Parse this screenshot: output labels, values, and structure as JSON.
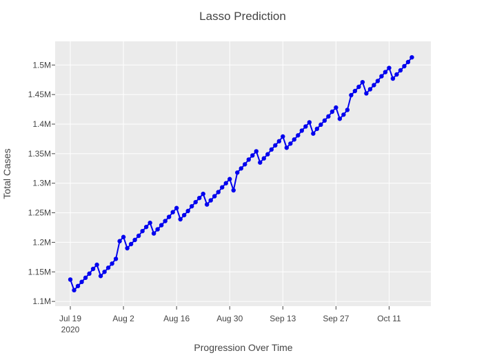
{
  "chart_data": {
    "type": "line",
    "title": "Lasso Prediction",
    "xlabel": "Progression Over Time",
    "ylabel": "Total Cases",
    "x_ticks": [
      {
        "date": "2020-07-19",
        "label": "Jul 19",
        "sublabel": "2020"
      },
      {
        "date": "2020-08-02",
        "label": "Aug 2",
        "sublabel": ""
      },
      {
        "date": "2020-08-16",
        "label": "Aug 16",
        "sublabel": ""
      },
      {
        "date": "2020-08-30",
        "label": "Aug 30",
        "sublabel": ""
      },
      {
        "date": "2020-09-13",
        "label": "Sep 13",
        "sublabel": ""
      },
      {
        "date": "2020-09-27",
        "label": "Sep 27",
        "sublabel": ""
      },
      {
        "date": "2020-10-11",
        "label": "Oct 11",
        "sublabel": ""
      }
    ],
    "y_ticks": [
      {
        "value": 1100000,
        "label": "1.1M"
      },
      {
        "value": 1150000,
        "label": "1.15M"
      },
      {
        "value": 1200000,
        "label": "1.2M"
      },
      {
        "value": 1250000,
        "label": "1.25M"
      },
      {
        "value": 1300000,
        "label": "1.3M"
      },
      {
        "value": 1350000,
        "label": "1.35M"
      },
      {
        "value": 1400000,
        "label": "1.4M"
      },
      {
        "value": 1450000,
        "label": "1.45M"
      },
      {
        "value": 1500000,
        "label": "1.5M"
      }
    ],
    "xlim": [
      "2020-07-15",
      "2020-10-22"
    ],
    "ylim": [
      1092000,
      1540000
    ],
    "grid": true,
    "colors": {
      "line": "#0000ee",
      "plot_bg": "#ebebeb",
      "grid": "#ffffff"
    },
    "series": [
      {
        "x": [
          "2020-07-19",
          "2020-07-20",
          "2020-07-21",
          "2020-07-22",
          "2020-07-23",
          "2020-07-24",
          "2020-07-25",
          "2020-07-26",
          "2020-07-27",
          "2020-07-28",
          "2020-07-29",
          "2020-07-30",
          "2020-07-31",
          "2020-08-01",
          "2020-08-02",
          "2020-08-03",
          "2020-08-04",
          "2020-08-05",
          "2020-08-06",
          "2020-08-07",
          "2020-08-08",
          "2020-08-09",
          "2020-08-10",
          "2020-08-11",
          "2020-08-12",
          "2020-08-13",
          "2020-08-14",
          "2020-08-15",
          "2020-08-16",
          "2020-08-17",
          "2020-08-18",
          "2020-08-19",
          "2020-08-20",
          "2020-08-21",
          "2020-08-22",
          "2020-08-23",
          "2020-08-24",
          "2020-08-25",
          "2020-08-26",
          "2020-08-27",
          "2020-08-28",
          "2020-08-29",
          "2020-08-30",
          "2020-08-31",
          "2020-09-01",
          "2020-09-02",
          "2020-09-03",
          "2020-09-04",
          "2020-09-05",
          "2020-09-06",
          "2020-09-07",
          "2020-09-08",
          "2020-09-09",
          "2020-09-10",
          "2020-09-11",
          "2020-09-12",
          "2020-09-13",
          "2020-09-14",
          "2020-09-15",
          "2020-09-16",
          "2020-09-17",
          "2020-09-18",
          "2020-09-19",
          "2020-09-20",
          "2020-09-21",
          "2020-09-22",
          "2020-09-23",
          "2020-09-24",
          "2020-09-25",
          "2020-09-26",
          "2020-09-27",
          "2020-09-28",
          "2020-09-29",
          "2020-09-30",
          "2020-10-01",
          "2020-10-02",
          "2020-10-03",
          "2020-10-04",
          "2020-10-05",
          "2020-10-06",
          "2020-10-07",
          "2020-10-08",
          "2020-10-09",
          "2020-10-10",
          "2020-10-11",
          "2020-10-12",
          "2020-10-13",
          "2020-10-14",
          "2020-10-15",
          "2020-10-16",
          "2020-10-17"
        ],
        "values": [
          1137000,
          1119000,
          1126000,
          1133000,
          1140000,
          1147000,
          1155000,
          1162000,
          1143000,
          1150000,
          1157000,
          1164000,
          1172000,
          1202000,
          1209000,
          1190000,
          1197000,
          1204000,
          1211000,
          1219000,
          1226000,
          1233000,
          1215000,
          1222000,
          1229000,
          1236000,
          1243000,
          1251000,
          1258000,
          1239000,
          1246000,
          1253000,
          1261000,
          1268000,
          1275000,
          1282000,
          1264000,
          1271000,
          1278000,
          1285000,
          1293000,
          1300000,
          1307000,
          1288000,
          1318000,
          1325000,
          1332000,
          1340000,
          1347000,
          1354000,
          1335000,
          1342000,
          1349000,
          1357000,
          1364000,
          1371000,
          1379000,
          1360000,
          1367000,
          1374000,
          1381000,
          1389000,
          1396000,
          1403000,
          1384000,
          1392000,
          1399000,
          1406000,
          1413000,
          1421000,
          1428000,
          1409000,
          1416000,
          1424000,
          1449000,
          1456000,
          1463000,
          1471000,
          1452000,
          1459000,
          1466000,
          1473000,
          1481000,
          1488000,
          1495000,
          1477000,
          1484000,
          1491000,
          1498000,
          1505000,
          1513000
        ]
      }
    ]
  }
}
